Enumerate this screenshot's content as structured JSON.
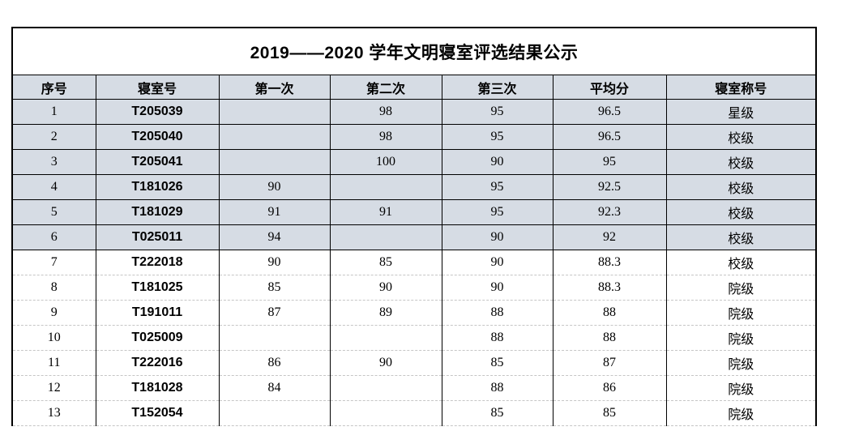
{
  "title": "2019——2020 学年文明寝室评选结果公示",
  "table": {
    "headers": [
      "序号",
      "寝室号",
      "第一次",
      "第二次",
      "第三次",
      "平均分",
      "寝室称号"
    ],
    "column_keys": [
      "no",
      "room",
      "first",
      "second",
      "third",
      "avg",
      "level"
    ],
    "rows": [
      {
        "no": "1",
        "room": "T205039",
        "first": "",
        "second": "98",
        "third": "95",
        "avg": "96.5",
        "level": "星级",
        "shaded": true
      },
      {
        "no": "2",
        "room": "T205040",
        "first": "",
        "second": "98",
        "third": "95",
        "avg": "96.5",
        "level": "校级",
        "shaded": true
      },
      {
        "no": "3",
        "room": "T205041",
        "first": "",
        "second": "100",
        "third": "90",
        "avg": "95",
        "level": "校级",
        "shaded": true
      },
      {
        "no": "4",
        "room": "T181026",
        "first": "90",
        "second": "",
        "third": "95",
        "avg": "92.5",
        "level": "校级",
        "shaded": true
      },
      {
        "no": "5",
        "room": "T181029",
        "first": "91",
        "second": "91",
        "third": "95",
        "avg": "92.3",
        "level": "校级",
        "shaded": true
      },
      {
        "no": "6",
        "room": "T025011",
        "first": "94",
        "second": "",
        "third": "90",
        "avg": "92",
        "level": "校级",
        "shaded": true
      },
      {
        "no": "7",
        "room": "T222018",
        "first": "90",
        "second": "85",
        "third": "90",
        "avg": "88.3",
        "level": "校级",
        "shaded": false
      },
      {
        "no": "8",
        "room": "T181025",
        "first": "85",
        "second": "90",
        "third": "90",
        "avg": "88.3",
        "level": "院级",
        "shaded": false
      },
      {
        "no": "9",
        "room": "T191011",
        "first": "87",
        "second": "89",
        "third": "88",
        "avg": "88",
        "level": "院级",
        "shaded": false
      },
      {
        "no": "10",
        "room": "T025009",
        "first": "",
        "second": "",
        "third": "88",
        "avg": "88",
        "level": "院级",
        "shaded": false
      },
      {
        "no": "11",
        "room": "T222016",
        "first": "86",
        "second": "90",
        "third": "85",
        "avg": "87",
        "level": "院级",
        "shaded": false
      },
      {
        "no": "12",
        "room": "T181028",
        "first": "84",
        "second": "",
        "third": "88",
        "avg": "86",
        "level": "院级",
        "shaded": false
      },
      {
        "no": "13",
        "room": "T152054",
        "first": "",
        "second": "",
        "third": "85",
        "avg": "85",
        "level": "院级",
        "shaded": false
      }
    ]
  },
  "colors": {
    "band_fill": "#d6dce4",
    "grid_border": "#000000",
    "dashed_border": "#c6c6c6",
    "text": "#000000",
    "background": "#ffffff"
  }
}
